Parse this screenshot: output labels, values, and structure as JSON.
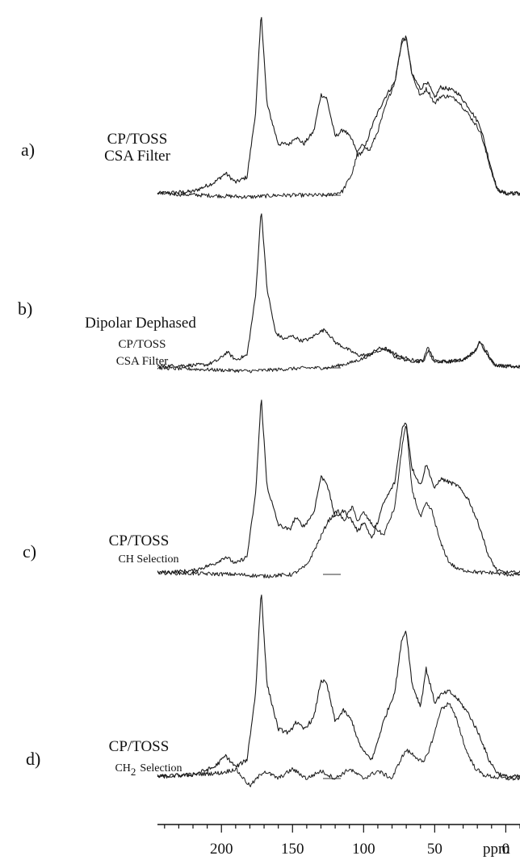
{
  "chart_data": {
    "type": "line",
    "xlabel": "ppm",
    "x_reversed": true,
    "xlim": [
      245,
      -10
    ],
    "x_ticks": [
      200,
      150,
      100,
      50,
      0
    ],
    "x_tick_labels": [
      "200",
      "150",
      "100",
      "50",
      "0"
    ],
    "colors": {
      "trace": "#1a1a1a",
      "axis": "#111111"
    },
    "panels": [
      {
        "letter": "a)",
        "title": "CP/TOSS",
        "subtitle": "CSA Filter",
        "series": [
          {
            "x": [
              245,
              220,
              205,
              197,
              190,
              182,
              176,
              172,
              168,
              160,
              152,
              148,
              142,
              135,
              130,
              126,
              120,
              114,
              108,
              104,
              100,
              94,
              86,
              78,
              73,
              70,
              66,
              60,
              56,
              54,
              50,
              46,
              40,
              34,
              26,
              18,
              12,
              6,
              0,
              -10
            ],
            "y": [
              0.01,
              0.02,
              0.07,
              0.12,
              0.07,
              0.1,
              0.45,
              1.0,
              0.5,
              0.28,
              0.28,
              0.32,
              0.28,
              0.35,
              0.55,
              0.53,
              0.32,
              0.36,
              0.3,
              0.22,
              0.24,
              0.38,
              0.52,
              0.62,
              0.85,
              0.86,
              0.66,
              0.58,
              0.62,
              0.6,
              0.53,
              0.59,
              0.58,
              0.56,
              0.48,
              0.38,
              0.2,
              0.03,
              0.01,
              0.01
            ]
          },
          {
            "x": [
              245,
              180,
              160,
              140,
              125,
              115,
              108,
              104,
              100,
              96,
              90,
              84,
              78,
              73,
              70,
              66,
              60,
              56,
              54,
              50,
              46,
              40,
              34,
              26,
              18,
              12,
              6,
              0,
              -10
            ],
            "y": [
              0.01,
              -0.01,
              0.0,
              0.0,
              0.0,
              0.02,
              0.12,
              0.24,
              0.28,
              0.24,
              0.35,
              0.5,
              0.62,
              0.84,
              0.86,
              0.66,
              0.54,
              0.58,
              0.56,
              0.5,
              0.54,
              0.54,
              0.52,
              0.44,
              0.35,
              0.18,
              0.03,
              0.01,
              0.01
            ]
          }
        ]
      },
      {
        "letter": "b)",
        "title": "Dipolar Dephased",
        "subtitle": "CP/TOSS",
        "subtitle2": "CSA Filter",
        "series": [
          {
            "x": [
              245,
              210,
              202,
              196,
              190,
              182,
              176,
              172,
              168,
              162,
              156,
              150,
              144,
              138,
              132,
              127,
              120,
              112,
              104,
              96,
              90,
              84,
              78,
              70,
              62,
              57,
              54,
              50,
              40,
              30,
              22,
              18,
              14,
              8,
              0,
              -10
            ],
            "y": [
              0.01,
              0.02,
              0.05,
              0.1,
              0.05,
              0.08,
              0.45,
              1.0,
              0.5,
              0.22,
              0.18,
              0.2,
              0.17,
              0.18,
              0.22,
              0.24,
              0.16,
              0.12,
              0.08,
              0.08,
              0.12,
              0.12,
              0.07,
              0.05,
              0.04,
              0.05,
              0.12,
              0.04,
              0.04,
              0.05,
              0.1,
              0.16,
              0.1,
              0.02,
              0.01,
              0.01
            ]
          },
          {
            "x": [
              245,
              180,
              160,
              140,
              125,
              110,
              100,
              92,
              86,
              80,
              74,
              66,
              58,
              55,
              52,
              46,
              40,
              30,
              22,
              18,
              14,
              8,
              0,
              -10
            ],
            "y": [
              0.0,
              -0.02,
              -0.01,
              0.0,
              0.0,
              0.03,
              0.06,
              0.1,
              0.12,
              0.1,
              0.07,
              0.05,
              0.04,
              0.14,
              0.05,
              0.04,
              0.04,
              0.05,
              0.1,
              0.17,
              0.11,
              0.02,
              0.01,
              0.01
            ]
          }
        ]
      },
      {
        "letter": "c)",
        "title": "CP/TOSS",
        "subtitle": "CH Selection",
        "series": [
          {
            "x": [
              245,
              220,
              205,
              197,
              190,
              182,
              176,
              172,
              168,
              160,
              152,
              148,
              142,
              135,
              130,
              126,
              120,
              114,
              108,
              104,
              100,
              94,
              86,
              78,
              73,
              70,
              66,
              60,
              56,
              54,
              50,
              46,
              40,
              34,
              26,
              18,
              12,
              6,
              0,
              -10
            ],
            "y": [
              0.01,
              0.02,
              0.06,
              0.1,
              0.06,
              0.1,
              0.45,
              1.0,
              0.5,
              0.28,
              0.25,
              0.32,
              0.27,
              0.35,
              0.55,
              0.52,
              0.32,
              0.36,
              0.3,
              0.24,
              0.3,
              0.2,
              0.4,
              0.52,
              0.82,
              0.86,
              0.6,
              0.5,
              0.62,
              0.58,
              0.48,
              0.54,
              0.52,
              0.5,
              0.42,
              0.26,
              0.1,
              0.02,
              0.01,
              0.01
            ]
          },
          {
            "x": [
              245,
              190,
              170,
              150,
              140,
              132,
              125,
              118,
              114,
              108,
              104,
              100,
              94,
              86,
              78,
              72,
              70,
              66,
              60,
              56,
              52,
              46,
              40,
              34,
              26,
              18,
              10,
              0,
              -10
            ],
            "y": [
              0.01,
              0.0,
              -0.01,
              0.0,
              0.05,
              0.18,
              0.3,
              0.36,
              0.3,
              0.38,
              0.3,
              0.35,
              0.28,
              0.22,
              0.38,
              0.78,
              0.84,
              0.48,
              0.32,
              0.4,
              0.36,
              0.18,
              0.07,
              0.03,
              0.02,
              0.01,
              0.01,
              0.0,
              0.0
            ]
          }
        ]
      },
      {
        "letter": "d)",
        "title": "CP/TOSS",
        "subtitle": "CH",
        "subtitle_sub": "2",
        "subtitle_tail": "Selection",
        "series": [
          {
            "x": [
              245,
              220,
              205,
              197,
              190,
              182,
              176,
              172,
              168,
              160,
              152,
              148,
              142,
              135,
              130,
              126,
              120,
              114,
              108,
              104,
              100,
              94,
              86,
              78,
              73,
              70,
              66,
              60,
              56,
              54,
              50,
              46,
              40,
              34,
              26,
              18,
              12,
              6,
              0,
              -10
            ],
            "y": [
              0.01,
              0.02,
              0.06,
              0.12,
              0.06,
              0.1,
              0.45,
              1.0,
              0.5,
              0.26,
              0.24,
              0.3,
              0.26,
              0.32,
              0.52,
              0.5,
              0.3,
              0.36,
              0.3,
              0.2,
              0.14,
              0.1,
              0.3,
              0.46,
              0.74,
              0.78,
              0.5,
              0.38,
              0.58,
              0.52,
              0.4,
              0.44,
              0.46,
              0.42,
              0.34,
              0.22,
              0.1,
              0.03,
              0.01,
              0.01
            ]
          },
          {
            "x": [
              245,
              200,
              190,
              180,
              170,
              160,
              150,
              140,
              130,
              120,
              110,
              100,
              90,
              80,
              74,
              70,
              64,
              58,
              54,
              50,
              46,
              40,
              34,
              28,
              22,
              16,
              10,
              0,
              -10
            ],
            "y": [
              0.01,
              0.03,
              0.05,
              -0.04,
              0.04,
              0.0,
              0.05,
              0.0,
              0.04,
              0.0,
              0.05,
              0.0,
              0.04,
              0.0,
              0.1,
              0.15,
              0.12,
              0.08,
              0.15,
              0.24,
              0.36,
              0.4,
              0.3,
              0.15,
              0.06,
              0.02,
              0.01,
              0.0,
              0.0
            ]
          }
        ]
      }
    ]
  }
}
